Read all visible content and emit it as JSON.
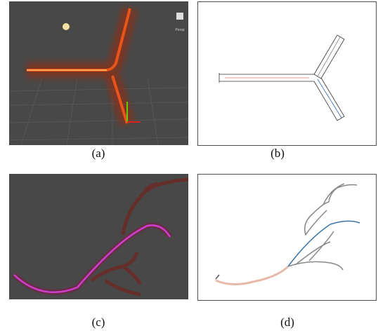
{
  "panels": [
    {
      "caption": "(a)",
      "label": "Persp"
    },
    {
      "caption": "(b)"
    },
    {
      "caption": "(c)"
    },
    {
      "caption": "(d)"
    }
  ]
}
